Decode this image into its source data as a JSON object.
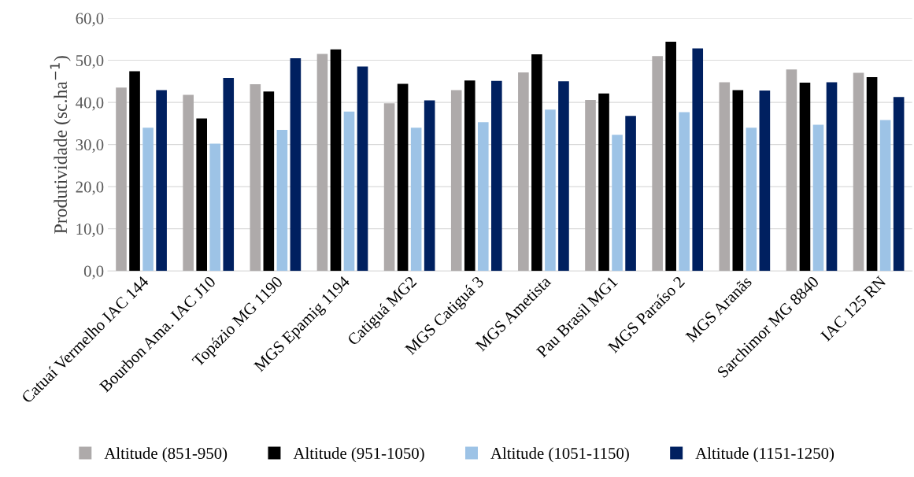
{
  "chart_data": {
    "type": "bar",
    "ylabel": "Produtividade (sc.ha$^{−1}$)",
    "categories": [
      "Catuaí Vermelho IAC 144",
      "Bourbon Ama. IAC J10",
      "Topázio MG 1190",
      "MGS Epamig 1194",
      "Catiguá MG2",
      "MGS Catiguá 3",
      "MGS Ametista",
      "Pau Brasil MG1",
      "MGS Paraíso 2",
      "MGS Aranãs",
      "Sarchimor MG 8840",
      "IAC 125 RN"
    ],
    "series": [
      {
        "name": "Altitude (851-950)",
        "color": "#aeaaaa",
        "values": [
          43.5,
          41.8,
          44.3,
          51.5,
          39.8,
          42.9,
          47.1,
          40.6,
          51.0,
          44.8,
          47.8,
          47.0
        ]
      },
      {
        "name": "Altitude (951-1050)",
        "color": "#000000",
        "values": [
          47.4,
          36.2,
          42.6,
          52.6,
          44.4,
          45.2,
          51.4,
          42.1,
          54.4,
          42.9,
          44.7,
          46.0
        ]
      },
      {
        "name": "Altitude (1051-1150)",
        "color": "#9dc3e6",
        "values": [
          34.0,
          30.2,
          33.5,
          37.8,
          34.0,
          35.3,
          38.3,
          32.3,
          37.7,
          34.0,
          34.7,
          35.8
        ]
      },
      {
        "name": "Altitude (1151-1250)",
        "color": "#002060",
        "values": [
          42.9,
          45.8,
          50.5,
          48.5,
          40.5,
          45.1,
          45.0,
          36.8,
          52.8,
          42.8,
          44.8,
          41.3
        ]
      }
    ],
    "ylim": [
      0,
      60
    ],
    "yticks": [
      {
        "value": 0,
        "label": "0,0"
      },
      {
        "value": 10,
        "label": "10,0"
      },
      {
        "value": 20,
        "label": "20,0"
      },
      {
        "value": 30,
        "label": "30,0"
      },
      {
        "value": 40,
        "label": "40,0"
      },
      {
        "value": 50,
        "label": "50,0"
      },
      {
        "value": 60,
        "label": "60,0"
      }
    ],
    "grid": "y",
    "legend": "bottom"
  }
}
